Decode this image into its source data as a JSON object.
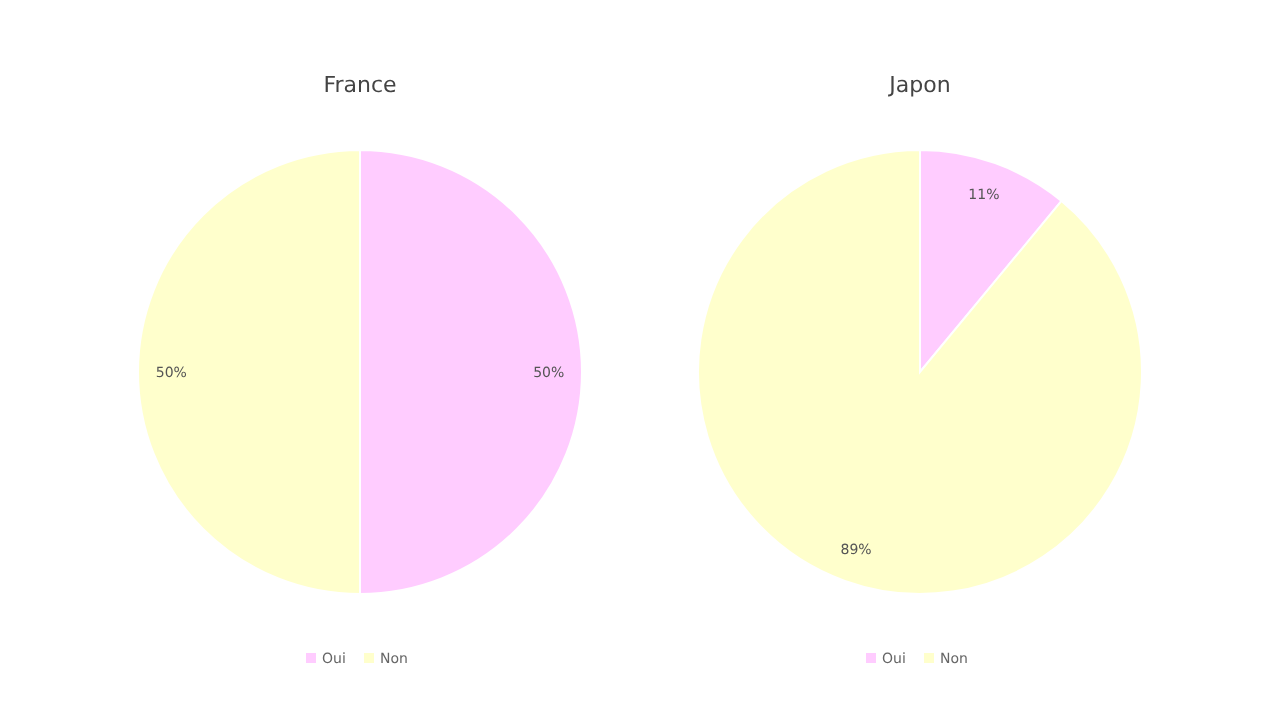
{
  "chart_data": [
    {
      "type": "pie",
      "title": "France",
      "categories": [
        "Oui",
        "Non"
      ],
      "values": [
        50,
        50
      ],
      "value_labels": [
        "50%",
        "50%"
      ],
      "colors": [
        "#ffccff",
        "#ffffcc"
      ],
      "legend": "bottom"
    },
    {
      "type": "pie",
      "title": "Japon",
      "categories": [
        "Oui",
        "Non"
      ],
      "values": [
        11,
        89
      ],
      "value_labels": [
        "11%",
        "89%"
      ],
      "colors": [
        "#ffccff",
        "#ffffcc"
      ],
      "legend": "bottom"
    }
  ]
}
